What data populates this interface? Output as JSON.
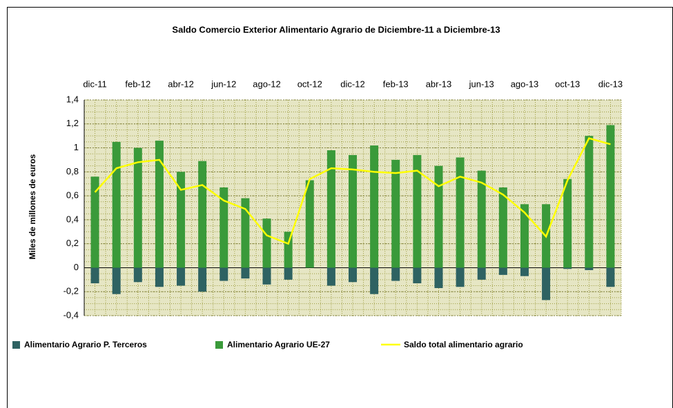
{
  "chart_data": {
    "type": "bar",
    "title": "Saldo Comercio Exterior Alimentario Agrario de Diciembre-11 a Diciembre-13",
    "y_label": "Miles de millones de euros",
    "categories": [
      "dic-11",
      null,
      "feb-12",
      null,
      "abr-12",
      null,
      "jun-12",
      null,
      "ago-12",
      null,
      "oct-12",
      null,
      "dic-12",
      null,
      "feb-13",
      null,
      "abr-13",
      null,
      "jun-13",
      null,
      "ago-13",
      null,
      "oct-13",
      null,
      "dic-13"
    ],
    "series": [
      {
        "name": "Alimentario Agrario P. Terceros",
        "color": "#2e6262",
        "type": "bar",
        "values": [
          -0.13,
          -0.22,
          -0.12,
          -0.16,
          -0.15,
          -0.2,
          -0.11,
          -0.09,
          -0.14,
          -0.1,
          0.01,
          -0.15,
          -0.12,
          -0.22,
          -0.11,
          -0.13,
          -0.17,
          -0.16,
          -0.1,
          -0.06,
          -0.07,
          -0.27,
          -0.01,
          -0.02,
          -0.16
        ]
      },
      {
        "name": "Alimentario Agrario UE-27",
        "color": "#3a9a3a",
        "type": "bar",
        "values": [
          0.76,
          1.05,
          1.0,
          1.06,
          0.8,
          0.89,
          0.67,
          0.58,
          0.41,
          0.3,
          0.73,
          0.98,
          0.94,
          1.02,
          0.9,
          0.94,
          0.85,
          0.92,
          0.81,
          0.67,
          0.53,
          0.53,
          0.74,
          1.1,
          1.19
        ]
      },
      {
        "name": "Saldo total alimentario agrario",
        "color": "#ffff00",
        "type": "line",
        "values": [
          0.63,
          0.83,
          0.88,
          0.9,
          0.65,
          0.69,
          0.56,
          0.49,
          0.27,
          0.2,
          0.74,
          0.83,
          0.82,
          0.8,
          0.79,
          0.81,
          0.68,
          0.76,
          0.71,
          0.61,
          0.46,
          0.26,
          0.73,
          1.08,
          1.03
        ]
      }
    ],
    "ylim": [
      -0.4,
      1.4
    ],
    "yticks": [
      {
        "value": -0.4,
        "label": "-0,4"
      },
      {
        "value": -0.2,
        "label": "-0,2"
      },
      0,
      {
        "value": 0.2,
        "label": "0,2"
      },
      {
        "value": 0.4,
        "label": "0,4"
      },
      {
        "value": 0.6,
        "label": "0,6"
      },
      {
        "value": 0.8,
        "label": "0,8"
      },
      1,
      {
        "value": 1.2,
        "label": "1,2"
      },
      {
        "value": 1.4,
        "label": "1,4"
      }
    ],
    "grid": true,
    "legend": "bottom"
  }
}
